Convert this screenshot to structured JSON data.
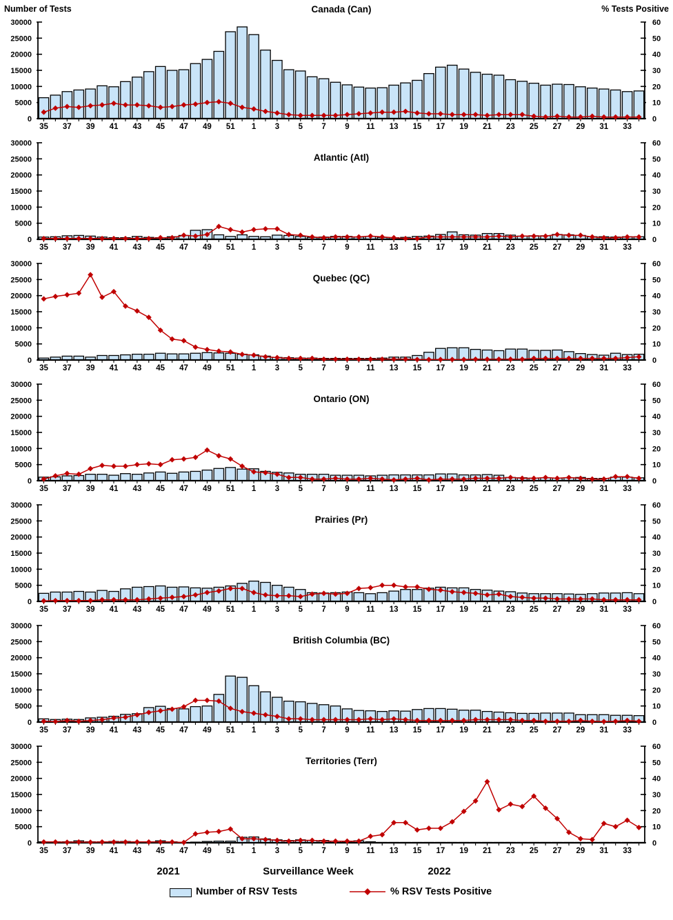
{
  "header": {
    "left_label": "Number of Tests",
    "right_label": "% Tests Positive"
  },
  "footer": {
    "year_left": "2021",
    "axis_title": "Surveillance Week",
    "year_right": "2022"
  },
  "legend": {
    "bar_label": "Number of RSV Tests",
    "line_label": "% RSV Tests Positive"
  },
  "colors": {
    "bar_fill": "#C9E4F8",
    "bar_stroke": "#000000",
    "line": "#C00000",
    "axis": "#000000"
  },
  "chart_data": {
    "type": "bar+line",
    "x": {
      "label": "Surveillance Week",
      "years": [
        "2021",
        "2022"
      ],
      "weeks": [
        35,
        36,
        37,
        38,
        39,
        40,
        41,
        42,
        43,
        44,
        45,
        46,
        47,
        48,
        49,
        50,
        51,
        52,
        1,
        2,
        3,
        4,
        5,
        6,
        7,
        8,
        9,
        10,
        11,
        12,
        13,
        14,
        15,
        16,
        17,
        18,
        19,
        20,
        21,
        22,
        23,
        24,
        25,
        26,
        27,
        28,
        29,
        30,
        31,
        32,
        33,
        34
      ],
      "shown_tick_labels": [
        35,
        37,
        39,
        41,
        43,
        45,
        47,
        49,
        51,
        1,
        3,
        5,
        7,
        9,
        11,
        13,
        15,
        17,
        19,
        21,
        23,
        25,
        27,
        29,
        31,
        33
      ]
    },
    "left_axis": {
      "label": "Number of Tests",
      "min": 0,
      "max": 30000,
      "step": 5000
    },
    "right_axis": {
      "label": "% Tests Positive",
      "min": 0,
      "max": 60,
      "step": 10
    },
    "panels": [
      {
        "title": "Canada (Can)",
        "title_inside": false,
        "series": [
          {
            "name": "Number of RSV Tests",
            "axis": "left",
            "values": [
              6500,
              7300,
              8400,
              8900,
              9200,
              10200,
              9900,
              11500,
              12900,
              14600,
              16200,
              15000,
              15200,
              17100,
              18400,
              20900,
              27000,
              28500,
              26100,
              21300,
              18100,
              15200,
              14800,
              13000,
              12400,
              11300,
              10500,
              9800,
              9500,
              9600,
              10400,
              11100,
              11900,
              14000,
              16000,
              16600,
              15400,
              14400,
              13800,
              13500,
              12100,
              11600,
              11000,
              10400,
              10700,
              10600,
              9900,
              9500,
              9200,
              8900,
              8400,
              8600
            ]
          },
          {
            "name": "% RSV Tests Positive",
            "axis": "right",
            "values": [
              4,
              6.5,
              7.5,
              7,
              8,
              8.5,
              9.5,
              8.5,
              8.5,
              8,
              7,
              7.5,
              8.5,
              9,
              10,
              10.5,
              9.5,
              7,
              6,
              4.5,
              3.5,
              2.5,
              2,
              2,
              2,
              2,
              2.5,
              3,
              3.5,
              4,
              4,
              4.5,
              3.5,
              3,
              3,
              2.5,
              2.5,
              2.5,
              2,
              2.5,
              2.5,
              2.5,
              1.5,
              1,
              1.5,
              1,
              1,
              1.5,
              1,
              1,
              1,
              1
            ]
          }
        ]
      },
      {
        "title": "Atlantic (Atl)",
        "title_inside": true,
        "series": [
          {
            "name": "Number of RSV Tests",
            "axis": "left",
            "values": [
              700,
              800,
              1100,
              1200,
              1000,
              700,
              500,
              500,
              900,
              600,
              500,
              800,
              1200,
              2800,
              3000,
              1400,
              900,
              1400,
              900,
              800,
              1300,
              1200,
              900,
              600,
              700,
              900,
              900,
              700,
              900,
              600,
              500,
              600,
              900,
              1000,
              1500,
              2300,
              1400,
              1300,
              1800,
              1800,
              1300,
              1000,
              1100,
              1100,
              1500,
              1400,
              1200,
              800,
              800,
              700,
              800,
              800
            ]
          },
          {
            "name": "% RSV Tests Positive",
            "axis": "right",
            "values": [
              0.5,
              0.5,
              0.5,
              0.5,
              0.5,
              0.5,
              0.5,
              0.5,
              0.5,
              0.5,
              1,
              1,
              2.5,
              2,
              3,
              8,
              6,
              4.5,
              6,
              6.5,
              6.5,
              3,
              2.5,
              1.5,
              1,
              1.5,
              1.5,
              1.5,
              2,
              1.5,
              1,
              0.5,
              0.5,
              1.5,
              1.5,
              1.5,
              1.5,
              1.5,
              1.5,
              2,
              1.5,
              2,
              2,
              2,
              3,
              2.5,
              2.5,
              1.5,
              1,
              1,
              1.5,
              1.5
            ]
          }
        ]
      },
      {
        "title": "Quebec (QC)",
        "title_inside": true,
        "series": [
          {
            "name": "Number of RSV Tests",
            "axis": "left",
            "values": [
              600,
              900,
              1200,
              1200,
              900,
              1400,
              1400,
              1600,
              1800,
              1800,
              2100,
              1900,
              1900,
              2100,
              2300,
              2200,
              2100,
              1800,
              1600,
              1200,
              800,
              700,
              600,
              600,
              500,
              500,
              500,
              500,
              500,
              600,
              900,
              900,
              1400,
              2400,
              3600,
              3800,
              3800,
              3300,
              3100,
              2900,
              3400,
              3400,
              3000,
              3000,
              3100,
              2600,
              2000,
              1700,
              1500,
              2100,
              1700,
              1800
            ]
          },
          {
            "name": "% RSV Tests Positive",
            "axis": "right",
            "values": [
              38,
              39.5,
              40.5,
              41.5,
              53,
              39,
              42.5,
              33.5,
              30.5,
              26.5,
              18.5,
              13,
              12,
              8,
              6.5,
              5.5,
              5,
              3.5,
              3,
              2,
              1.5,
              1,
              1,
              1,
              0.5,
              0.5,
              0.5,
              0.5,
              0.5,
              0.5,
              0.5,
              0.5,
              0.3,
              0.3,
              0.3,
              0.3,
              0.3,
              0.5,
              0.5,
              0.5,
              0.5,
              0.5,
              1,
              1,
              1,
              1,
              1,
              1,
              1,
              1,
              1.5,
              2
            ]
          }
        ]
      },
      {
        "title": "Ontario (ON)",
        "title_inside": true,
        "series": [
          {
            "name": "Number of RSV Tests",
            "axis": "left",
            "values": [
              1100,
              1200,
              1500,
              1600,
              2000,
              2000,
              1700,
              2200,
              2000,
              2400,
              2700,
              2300,
              2700,
              2900,
              3300,
              3800,
              4100,
              3600,
              3700,
              2900,
              2600,
              2400,
              2000,
              2000,
              2000,
              1700,
              1700,
              1700,
              1500,
              1700,
              1800,
              1800,
              1800,
              1800,
              2100,
              2100,
              1800,
              1800,
              1900,
              1700,
              1000,
              900,
              800,
              900,
              800,
              900,
              1000,
              700,
              700,
              1100,
              1100,
              900
            ]
          },
          {
            "name": "% RSV Tests Positive",
            "axis": "right",
            "values": [
              1,
              3,
              4.5,
              4,
              7.5,
              9.5,
              9,
              9,
              10,
              10.5,
              10,
              13,
              13.5,
              14.5,
              19,
              15.5,
              13.5,
              9,
              5.5,
              5,
              4,
              2,
              2,
              1,
              1,
              1.5,
              1,
              1,
              1.5,
              1,
              0.5,
              1,
              1.5,
              0.5,
              1,
              1,
              1,
              1.5,
              1.5,
              1.5,
              2,
              1.5,
              1.5,
              2,
              1.5,
              2,
              1.5,
              1,
              1,
              2.5,
              2.5,
              1.5
            ]
          }
        ]
      },
      {
        "title": "Prairies (Pr)",
        "title_inside": true,
        "series": [
          {
            "name": "Number of RSV Tests",
            "axis": "left",
            "values": [
              2500,
              2900,
              2900,
              3100,
              2900,
              3400,
              3100,
              3900,
              4400,
              4600,
              4800,
              4400,
              4500,
              4200,
              4100,
              4400,
              4800,
              5600,
              6300,
              5900,
              5000,
              4400,
              3700,
              2700,
              2600,
              2700,
              2900,
              2700,
              2400,
              2700,
              3200,
              3700,
              3700,
              4100,
              4400,
              4200,
              4200,
              3700,
              3500,
              3200,
              3000,
              2600,
              2400,
              2400,
              2400,
              2300,
              2200,
              2400,
              2600,
              2600,
              2700,
              2400
            ]
          },
          {
            "name": "% RSV Tests Positive",
            "axis": "right",
            "values": [
              0.3,
              0.5,
              0.5,
              0.5,
              0.5,
              1,
              1,
              1,
              1,
              1.5,
              2,
              2.5,
              3,
              4,
              5.5,
              6.5,
              8,
              8,
              5.5,
              4,
              3.5,
              3.5,
              3,
              4.5,
              5,
              4.5,
              5,
              8,
              8.5,
              10,
              10,
              9,
              9,
              7.5,
              7,
              6,
              5.5,
              5,
              4,
              4.5,
              3,
              2.5,
              2,
              2,
              1.5,
              1.5,
              1.5,
              1.5,
              1,
              1,
              1,
              1
            ]
          }
        ]
      },
      {
        "title": "British Columbia (BC)",
        "title_inside": true,
        "series": [
          {
            "name": "Number of RSV Tests",
            "axis": "left",
            "values": [
              1000,
              800,
              900,
              800,
              1300,
              1500,
              1800,
              2400,
              2600,
              4500,
              4900,
              4200,
              4100,
              4800,
              5000,
              8600,
              14300,
              13900,
              11300,
              9400,
              7700,
              6500,
              6300,
              5800,
              5400,
              5000,
              4100,
              3600,
              3500,
              3300,
              3500,
              3400,
              3900,
              4200,
              4200,
              4000,
              3700,
              3700,
              3300,
              3100,
              2900,
              2700,
              2700,
              2800,
              2800,
              2800,
              2300,
              2300,
              2300,
              2100,
              2100,
              2000
            ]
          },
          {
            "name": "% RSV Tests Positive",
            "axis": "right",
            "values": [
              0.5,
              0.3,
              1,
              0.5,
              1,
              1.5,
              2.5,
              3,
              4.5,
              6,
              7,
              8,
              9.5,
              13.5,
              13.5,
              13,
              8.5,
              6.5,
              5.5,
              4.5,
              3.5,
              2,
              2,
              1.5,
              1.5,
              1.5,
              1.5,
              1.5,
              2,
              1.5,
              2,
              1.5,
              1,
              1,
              1,
              1,
              1,
              1.5,
              1.5,
              1.5,
              1.5,
              1,
              1,
              0.5,
              0.5,
              0.5,
              1,
              0.5,
              0.3,
              0.5,
              1,
              0.5
            ]
          }
        ]
      },
      {
        "title": "Territories (Terr)",
        "title_inside": true,
        "series": [
          {
            "name": "Number of RSV Tests",
            "axis": "left",
            "values": [
              300,
              300,
              300,
              600,
              300,
              300,
              400,
              400,
              300,
              300,
              600,
              300,
              100,
              200,
              400,
              500,
              500,
              1700,
              1800,
              1200,
              900,
              700,
              900,
              700,
              700,
              500,
              400,
              600,
              300,
              100,
              100,
              100,
              100,
              100,
              100,
              100,
              100,
              100,
              100,
              100,
              100,
              100,
              100,
              100,
              100,
              100,
              100,
              100,
              100,
              100,
              100,
              100
            ]
          },
          {
            "name": "% RSV Tests Positive",
            "axis": "right",
            "values": [
              0.5,
              0.5,
              0.3,
              0.5,
              0.3,
              0.5,
              0.5,
              0.5,
              0.5,
              0.5,
              0.5,
              0.5,
              0.2,
              5.5,
              6.5,
              7,
              8.5,
              2.5,
              2.5,
              2,
              1.5,
              1,
              1.5,
              1.5,
              1,
              1,
              1,
              1,
              4,
              5,
              12.5,
              12.5,
              8,
              9,
              9,
              13,
              19.5,
              26,
              38,
              20.5,
              24,
              22.5,
              29,
              21.5,
              15,
              6.5,
              2.5,
              2,
              12,
              10,
              14,
              9.5
            ]
          }
        ]
      }
    ]
  }
}
